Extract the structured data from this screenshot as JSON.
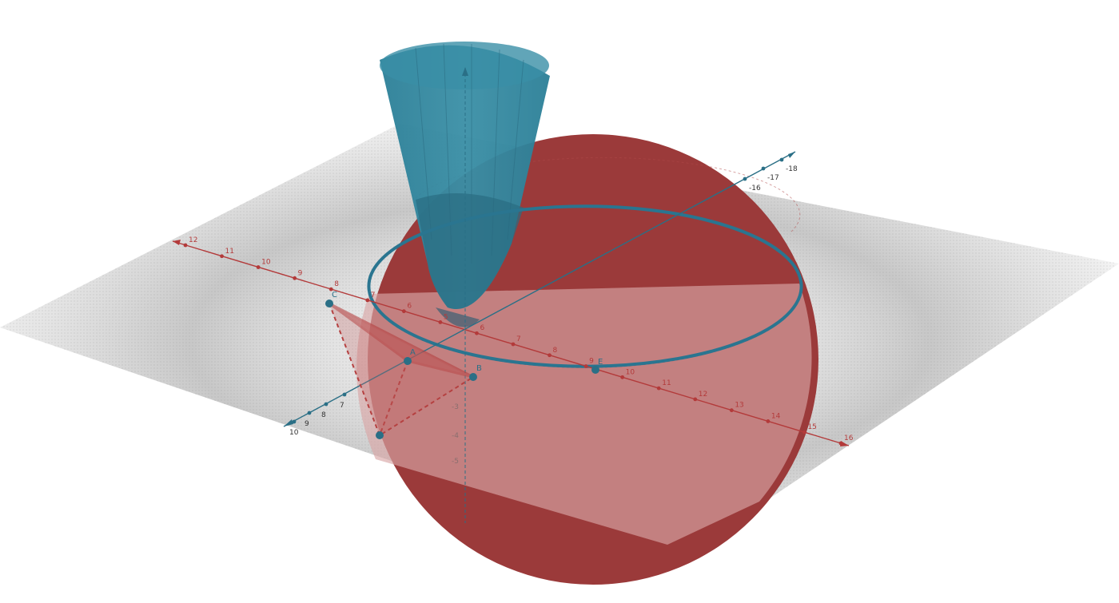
{
  "colors": {
    "sphere": "#9b3a3a",
    "sphere_light": "#d9a6a6",
    "paraboloid": "#2b7f97",
    "circle": "#2a7590",
    "axis_red": "#b33a3a",
    "axis_teal": "#2a6f86",
    "plane_gray": "#c8c8c8",
    "label_gray": "#666666"
  },
  "axis_x_labels": [
    "12",
    "11",
    "10",
    "9",
    "8",
    "7",
    "6",
    "5",
    "6",
    "7",
    "8",
    "9",
    "10",
    "11",
    "12",
    "13",
    "14",
    "15",
    "16"
  ],
  "axis_y_labels": [
    "10",
    "9",
    "8",
    "7",
    "-16",
    "-17",
    "-18"
  ],
  "axis_z_labels": [
    "-3",
    "-4",
    "-5"
  ],
  "points": {
    "A": "A",
    "B": "B",
    "C": "C",
    "D": "D",
    "E": "E"
  },
  "icons": [
    "sphere-surface",
    "paraboloid-surface",
    "intersection-circle",
    "x-axis",
    "y-axis",
    "z-axis",
    "plane-surface",
    "triangle-polygon"
  ]
}
